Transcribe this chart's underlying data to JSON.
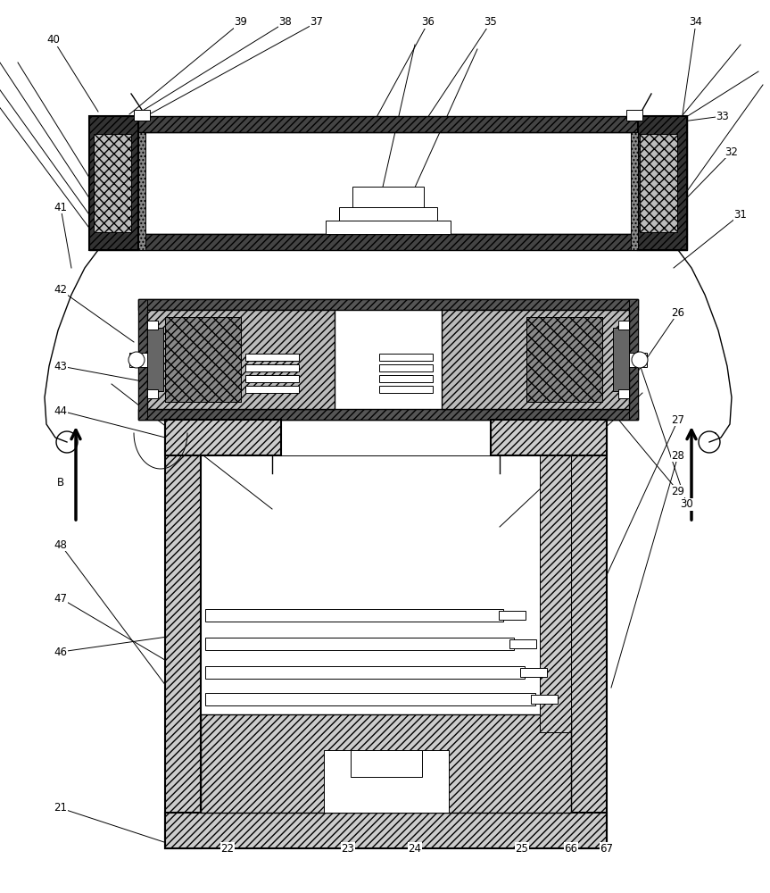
{
  "bg_color": "#ffffff",
  "fig_width": 8.63,
  "fig_height": 10.0,
  "dpi": 100
}
